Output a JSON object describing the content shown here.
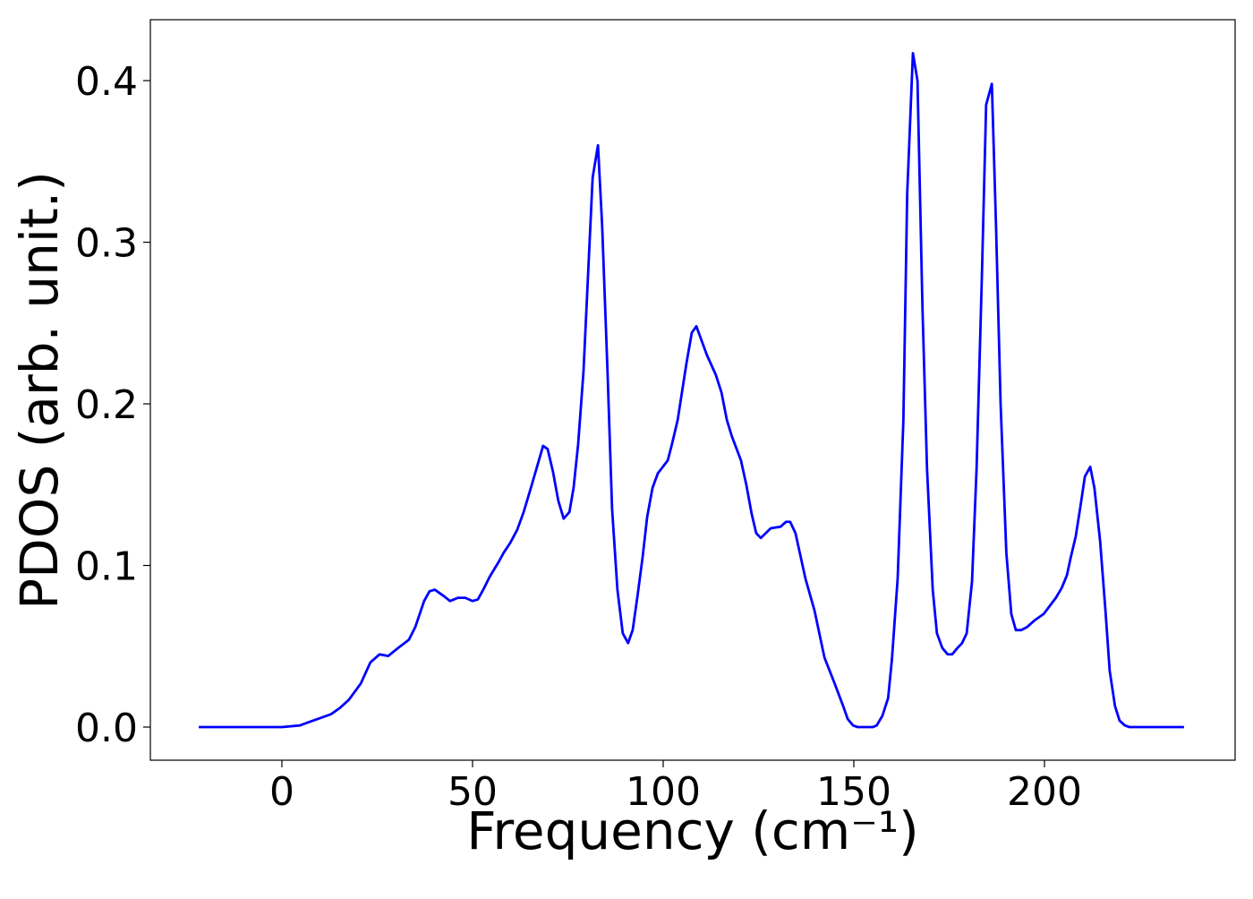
{
  "chart_data": {
    "type": "line",
    "xlabel": "Frequency (cm⁻¹)",
    "ylabel": "PDOS (arb. unit.)",
    "xlim": [
      -34.5,
      250
    ],
    "ylim": [
      -0.0205,
      0.4377
    ],
    "xticks": [
      0,
      50,
      100,
      150,
      200
    ],
    "yticks": [
      {
        "value": 0,
        "label": "0.0"
      },
      0.1,
      0.2,
      0.3,
      0.4
    ],
    "x": [
      -21.8,
      -15,
      -10,
      -5,
      0,
      4.7,
      7,
      9.4,
      12.9,
      15.3,
      17.6,
      20.7,
      23.2,
      25.6,
      27.9,
      30.5,
      33.3,
      35,
      37.3,
      38.7,
      40.1,
      42.5,
      44.1,
      46.2,
      48.1,
      50,
      51.4,
      52.8,
      54.5,
      56.8,
      58.2,
      59.9,
      61.7,
      63.4,
      65.3,
      67.4,
      68.5,
      69.7,
      71.1,
      72.5,
      73.9,
      75.4,
      76.5,
      77.7,
      79.1,
      80.3,
      81.5,
      82.9,
      84,
      85.4,
      86.6,
      88,
      89.4,
      90.8,
      92,
      93.2,
      94.6,
      95.8,
      97.2,
      98.6,
      101.2,
      102.3,
      103.8,
      106.1,
      107.5,
      108.7,
      111.5,
      113.8,
      115.3,
      116.7,
      118,
      120.4,
      121.8,
      123.2,
      124.4,
      125.6,
      128.2,
      130.8,
      132.2,
      133.3,
      134.7,
      137.3,
      139.7,
      142.3,
      144.8,
      147.2,
      148.4,
      149.8,
      151,
      155,
      156,
      157.5,
      159,
      160,
      161.5,
      163,
      164,
      165.5,
      166.7,
      168,
      169.2,
      170.7,
      171.8,
      173.2,
      174.6,
      175.8,
      177.2,
      178.4,
      179.6,
      181,
      182.2,
      183.6,
      184.7,
      186.2,
      187.3,
      188.5,
      190,
      191.3,
      192.5,
      193.9,
      195.5,
      197.4,
      199.8,
      201.4,
      203,
      204.5,
      205.9,
      206.8,
      208.2,
      209.4,
      210.6,
      212,
      213.1,
      214.6,
      216,
      217.1,
      218.5,
      219.7,
      221.1,
      222.3,
      236.6
    ],
    "series": [
      {
        "name": "PDOS",
        "color": "#0000ff",
        "values": [
          0,
          0,
          0,
          0,
          0,
          0.001,
          0.003,
          0.005,
          0.008,
          0.012,
          0.017,
          0.027,
          0.04,
          0.045,
          0.044,
          0.049,
          0.054,
          0.062,
          0.078,
          0.084,
          0.085,
          0.081,
          0.078,
          0.08,
          0.08,
          0.078,
          0.079,
          0.085,
          0.093,
          0.102,
          0.108,
          0.114,
          0.122,
          0.133,
          0.148,
          0.165,
          0.174,
          0.172,
          0.158,
          0.14,
          0.129,
          0.133,
          0.148,
          0.175,
          0.22,
          0.28,
          0.34,
          0.36,
          0.31,
          0.22,
          0.135,
          0.085,
          0.058,
          0.052,
          0.06,
          0.08,
          0.105,
          0.13,
          0.148,
          0.157,
          0.165,
          0.175,
          0.19,
          0.225,
          0.244,
          0.248,
          0.23,
          0.218,
          0.207,
          0.19,
          0.18,
          0.165,
          0.15,
          0.132,
          0.12,
          0.117,
          0.123,
          0.124,
          0.127,
          0.127,
          0.12,
          0.092,
          0.072,
          0.043,
          0.028,
          0.013,
          0.005,
          0.001,
          0,
          0,
          0.001,
          0.007,
          0.018,
          0.042,
          0.092,
          0.19,
          0.33,
          0.417,
          0.4,
          0.26,
          0.16,
          0.085,
          0.058,
          0.049,
          0.045,
          0.045,
          0.049,
          0.052,
          0.058,
          0.09,
          0.16,
          0.28,
          0.385,
          0.398,
          0.31,
          0.2,
          0.108,
          0.07,
          0.06,
          0.06,
          0.062,
          0.066,
          0.07,
          0.075,
          0.08,
          0.086,
          0.094,
          0.104,
          0.118,
          0.136,
          0.155,
          0.161,
          0.148,
          0.115,
          0.072,
          0.035,
          0.013,
          0.004,
          0.001,
          0,
          0
        ]
      }
    ]
  }
}
